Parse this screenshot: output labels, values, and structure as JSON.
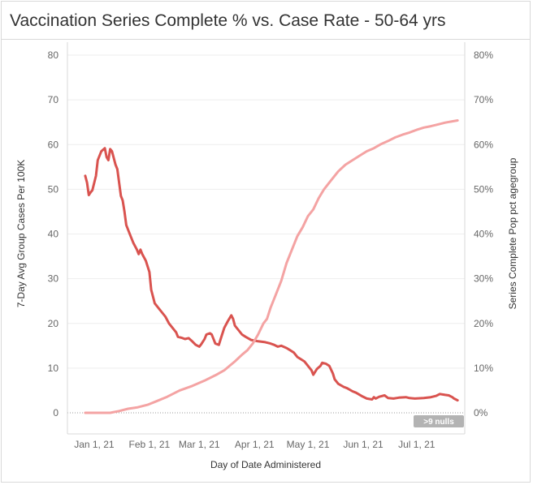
{
  "chart_data": {
    "type": "line",
    "title": "Vaccination Series Complete % vs. Case Rate  - 50-64 yrs",
    "xlabel": "Day of Date Administered",
    "ylabel_left": "7-Day Avg Group Cases Per 100K",
    "ylabel_right": "Series Complete Pop pct agegroup",
    "x_ticks": [
      "Jan 1, 21",
      "Feb 1, 21",
      "Mar 1, 21",
      "Apr 1, 21",
      "May 1, 21",
      "Jun 1, 21",
      "Jul 1, 21"
    ],
    "y_left_ticks": [
      "0",
      "10",
      "20",
      "30",
      "40",
      "50",
      "60",
      "70",
      "80"
    ],
    "y_right_ticks": [
      "0%",
      "10%",
      "20%",
      "30%",
      "40%",
      "50%",
      "60%",
      "70%",
      "80%"
    ],
    "ylim_left": [
      0,
      80
    ],
    "ylim_right": [
      0,
      0.8
    ],
    "xlim": [
      "2020-12-17",
      "2021-07-28"
    ],
    "grid": true,
    "nulls_badge": ">9 nulls",
    "series": [
      {
        "name": "7-Day Avg Group Cases Per 100K",
        "axis": "left",
        "color": "#d9534f",
        "points": [
          [
            "2020-12-27",
            53
          ],
          [
            "2020-12-28",
            51.5
          ],
          [
            "2020-12-29",
            48.7
          ],
          [
            "2020-12-30",
            49.3
          ],
          [
            "2020-12-31",
            49.8
          ],
          [
            "2021-01-02",
            53
          ],
          [
            "2021-01-03",
            56.5
          ],
          [
            "2021-01-05",
            58.5
          ],
          [
            "2021-01-07",
            59.2
          ],
          [
            "2021-01-08",
            57.2
          ],
          [
            "2021-01-09",
            56.5
          ],
          [
            "2021-01-10",
            59
          ],
          [
            "2021-01-11",
            58.5
          ],
          [
            "2021-01-12",
            57
          ],
          [
            "2021-01-13",
            55.5
          ],
          [
            "2021-01-14",
            54.5
          ],
          [
            "2021-01-15",
            51.5
          ],
          [
            "2021-01-16",
            48.5
          ],
          [
            "2021-01-17",
            47.5
          ],
          [
            "2021-01-18",
            45
          ],
          [
            "2021-01-19",
            42
          ],
          [
            "2021-01-21",
            40
          ],
          [
            "2021-01-23",
            38
          ],
          [
            "2021-01-25",
            36.5
          ],
          [
            "2021-01-26",
            35.5
          ],
          [
            "2021-01-27",
            36.5
          ],
          [
            "2021-01-28",
            35.5
          ],
          [
            "2021-01-30",
            34
          ],
          [
            "2021-02-01",
            31.5
          ],
          [
            "2021-02-02",
            27.5
          ],
          [
            "2021-02-03",
            26
          ],
          [
            "2021-02-04",
            24.5
          ],
          [
            "2021-02-06",
            23.5
          ],
          [
            "2021-02-08",
            22.5
          ],
          [
            "2021-02-10",
            21.5
          ],
          [
            "2021-02-12",
            20
          ],
          [
            "2021-02-14",
            19
          ],
          [
            "2021-02-16",
            18
          ],
          [
            "2021-02-17",
            17
          ],
          [
            "2021-02-19",
            16.8
          ],
          [
            "2021-02-21",
            16.5
          ],
          [
            "2021-02-23",
            16.7
          ],
          [
            "2021-02-25",
            16
          ],
          [
            "2021-02-27",
            15.2
          ],
          [
            "2021-03-01",
            14.8
          ],
          [
            "2021-03-02",
            15.3
          ],
          [
            "2021-03-04",
            16.5
          ],
          [
            "2021-03-05",
            17.5
          ],
          [
            "2021-03-07",
            17.8
          ],
          [
            "2021-03-08",
            17.5
          ],
          [
            "2021-03-09",
            16.5
          ],
          [
            "2021-03-10",
            15.5
          ],
          [
            "2021-03-12",
            15.2
          ],
          [
            "2021-03-13",
            16.5
          ],
          [
            "2021-03-15",
            19
          ],
          [
            "2021-03-17",
            20.5
          ],
          [
            "2021-03-19",
            21.8
          ],
          [
            "2021-03-20",
            21
          ],
          [
            "2021-03-21",
            19.5
          ],
          [
            "2021-03-23",
            18.5
          ],
          [
            "2021-03-25",
            17.5
          ],
          [
            "2021-03-27",
            17
          ],
          [
            "2021-03-30",
            16.3
          ],
          [
            "2021-04-03",
            16
          ],
          [
            "2021-04-07",
            15.8
          ],
          [
            "2021-04-10",
            15.5
          ],
          [
            "2021-04-12",
            15.2
          ],
          [
            "2021-04-14",
            14.8
          ],
          [
            "2021-04-16",
            15
          ],
          [
            "2021-04-19",
            14.5
          ],
          [
            "2021-04-21",
            14
          ],
          [
            "2021-04-23",
            13.5
          ],
          [
            "2021-04-25",
            12.5
          ],
          [
            "2021-04-27",
            12
          ],
          [
            "2021-04-29",
            11.5
          ],
          [
            "2021-05-01",
            10.5
          ],
          [
            "2021-05-03",
            9.5
          ],
          [
            "2021-05-04",
            8.5
          ],
          [
            "2021-05-06",
            9.8
          ],
          [
            "2021-05-08",
            10.5
          ],
          [
            "2021-05-09",
            11.2
          ],
          [
            "2021-05-11",
            11
          ],
          [
            "2021-05-13",
            10.5
          ],
          [
            "2021-05-15",
            8.8
          ],
          [
            "2021-05-16",
            7.5
          ],
          [
            "2021-05-18",
            6.5
          ],
          [
            "2021-05-21",
            5.8
          ],
          [
            "2021-05-23",
            5.5
          ],
          [
            "2021-05-26",
            4.8
          ],
          [
            "2021-05-28",
            4.5
          ],
          [
            "2021-05-31",
            3.8
          ],
          [
            "2021-06-03",
            3.2
          ],
          [
            "2021-06-06",
            3
          ],
          [
            "2021-06-07",
            3.5
          ],
          [
            "2021-06-08",
            3.2
          ],
          [
            "2021-06-10",
            3.6
          ],
          [
            "2021-06-13",
            3.9
          ],
          [
            "2021-06-15",
            3.3
          ],
          [
            "2021-06-18",
            3.2
          ],
          [
            "2021-06-21",
            3.4
          ],
          [
            "2021-06-25",
            3.5
          ],
          [
            "2021-06-27",
            3.3
          ],
          [
            "2021-06-30",
            3.2
          ],
          [
            "2021-07-05",
            3.3
          ],
          [
            "2021-07-09",
            3.5
          ],
          [
            "2021-07-12",
            3.8
          ],
          [
            "2021-07-14",
            4.2
          ],
          [
            "2021-07-17",
            4
          ],
          [
            "2021-07-19",
            3.9
          ],
          [
            "2021-07-21",
            3.5
          ],
          [
            "2021-07-22",
            3.2
          ],
          [
            "2021-07-24",
            2.8
          ]
        ]
      },
      {
        "name": "Series Complete Pop pct agegroup",
        "axis": "right",
        "color": "#f4a3a3",
        "points": [
          [
            "2020-12-27",
            0.0
          ],
          [
            "2021-01-10",
            0.0
          ],
          [
            "2021-01-15",
            0.004
          ],
          [
            "2021-01-20",
            0.009
          ],
          [
            "2021-01-25",
            0.012
          ],
          [
            "2021-01-31",
            0.018
          ],
          [
            "2021-02-05",
            0.026
          ],
          [
            "2021-02-11",
            0.036
          ],
          [
            "2021-02-18",
            0.05
          ],
          [
            "2021-02-25",
            0.06
          ],
          [
            "2021-03-04",
            0.072
          ],
          [
            "2021-03-11",
            0.086
          ],
          [
            "2021-03-15",
            0.095
          ],
          [
            "2021-03-18",
            0.105
          ],
          [
            "2021-03-21",
            0.115
          ],
          [
            "2021-03-25",
            0.13
          ],
          [
            "2021-03-28",
            0.14
          ],
          [
            "2021-03-31",
            0.155
          ],
          [
            "2021-04-03",
            0.175
          ],
          [
            "2021-04-06",
            0.2
          ],
          [
            "2021-04-08",
            0.21
          ],
          [
            "2021-04-10",
            0.235
          ],
          [
            "2021-04-13",
            0.265
          ],
          [
            "2021-04-16",
            0.295
          ],
          [
            "2021-04-19",
            0.335
          ],
          [
            "2021-04-22",
            0.365
          ],
          [
            "2021-04-25",
            0.395
          ],
          [
            "2021-04-28",
            0.415
          ],
          [
            "2021-05-01",
            0.44
          ],
          [
            "2021-05-04",
            0.455
          ],
          [
            "2021-05-07",
            0.48
          ],
          [
            "2021-05-10",
            0.5
          ],
          [
            "2021-05-14",
            0.52
          ],
          [
            "2021-05-18",
            0.54
          ],
          [
            "2021-05-22",
            0.555
          ],
          [
            "2021-05-26",
            0.565
          ],
          [
            "2021-05-30",
            0.575
          ],
          [
            "2021-06-03",
            0.585
          ],
          [
            "2021-06-07",
            0.592
          ],
          [
            "2021-06-11",
            0.601
          ],
          [
            "2021-06-15",
            0.608
          ],
          [
            "2021-06-19",
            0.616
          ],
          [
            "2021-06-23",
            0.622
          ],
          [
            "2021-06-27",
            0.627
          ],
          [
            "2021-07-01",
            0.633
          ],
          [
            "2021-07-05",
            0.638
          ],
          [
            "2021-07-09",
            0.641
          ],
          [
            "2021-07-13",
            0.645
          ],
          [
            "2021-07-17",
            0.649
          ],
          [
            "2021-07-21",
            0.652
          ],
          [
            "2021-07-24",
            0.654
          ]
        ]
      }
    ]
  }
}
